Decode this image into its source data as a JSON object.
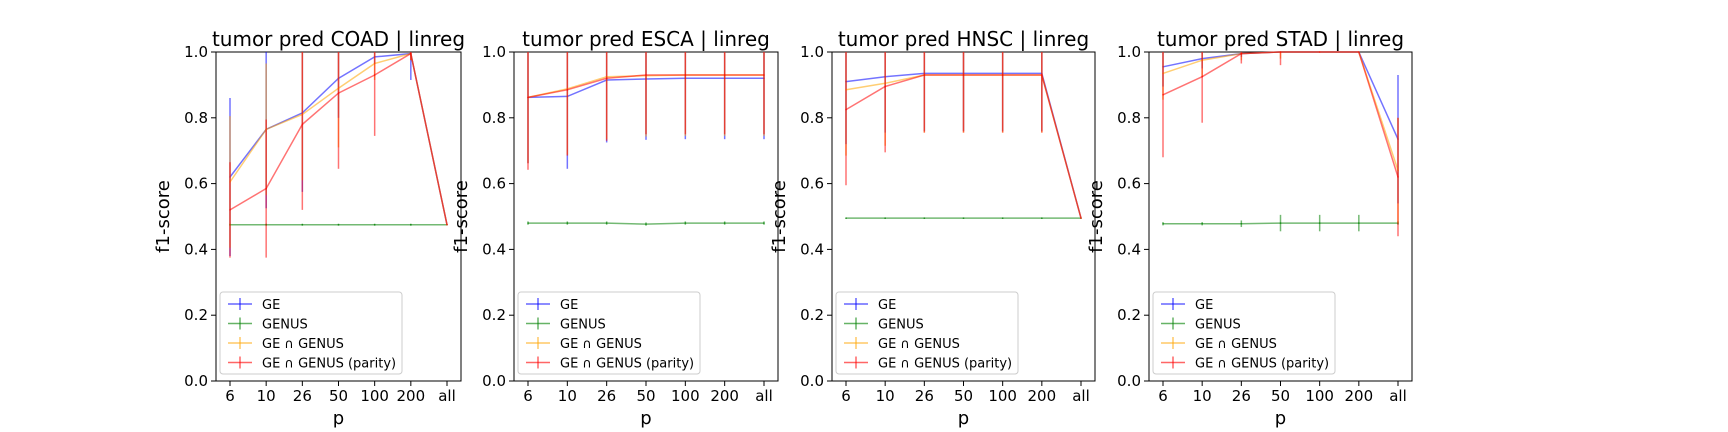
{
  "figure": {
    "colors": {
      "GE": "#0000ff",
      "GENUS": "#008000",
      "GE ∩ GENUS": "#ffa500",
      "GE ∩ GENUS (parity)": "#ff0000"
    },
    "legend": [
      "GE",
      "GENUS",
      "GE ∩ GENUS",
      "GE ∩ GENUS (parity)"
    ]
  },
  "chart_data": [
    {
      "type": "line",
      "title": "tumor pred COAD | linreg",
      "xlabel": "p",
      "ylabel": "f1-score",
      "categories": [
        "6",
        "10",
        "26",
        "50",
        "100",
        "200",
        "all"
      ],
      "ylim": [
        0.0,
        1.0
      ],
      "yticks": [
        "0.0",
        "0.2",
        "0.4",
        "0.6",
        "0.8",
        "1.0"
      ],
      "legend_position": "lower-left",
      "series": [
        {
          "name": "GE",
          "values": [
            0.62,
            0.765,
            0.815,
            0.92,
            0.985,
            0.995,
            0.475
          ],
          "err": [
            0.24,
            0.24,
            0.24,
            0.12,
            0.02,
            0.08,
            0
          ]
        },
        {
          "name": "GENUS",
          "values": [
            0.475,
            0.475,
            0.475,
            0.475,
            0.475,
            0.475,
            0.475
          ],
          "err": [
            0.003,
            0.003,
            0.003,
            0.003,
            0.003,
            0.003,
            0
          ]
        },
        {
          "name": "GE ∩ GENUS",
          "values": [
            0.605,
            0.765,
            0.81,
            0.89,
            0.965,
            0.995,
            0.475
          ],
          "err": [
            0.2,
            0.2,
            0.2,
            0.18,
            0.05,
            0.02,
            0
          ]
        },
        {
          "name": "GE ∩ GENUS (parity)",
          "values": [
            0.52,
            0.585,
            0.78,
            0.875,
            0.93,
            0.995,
            0.475
          ],
          "err": [
            0.145,
            0.21,
            0.26,
            0.23,
            0.185,
            0.02,
            0
          ]
        }
      ]
    },
    {
      "type": "line",
      "title": "tumor pred ESCA | linreg",
      "xlabel": "p",
      "ylabel": "f1-score",
      "categories": [
        "6",
        "10",
        "26",
        "50",
        "100",
        "200",
        "all"
      ],
      "ylim": [
        0.0,
        1.0
      ],
      "yticks": [
        "0.0",
        "0.2",
        "0.4",
        "0.6",
        "0.8",
        "1.0"
      ],
      "legend_position": "lower-left",
      "series": [
        {
          "name": "GE",
          "values": [
            0.862,
            0.865,
            0.915,
            0.918,
            0.92,
            0.92,
            0.92
          ],
          "err": [
            0.2,
            0.22,
            0.19,
            0.185,
            0.185,
            0.185,
            0.185
          ]
        },
        {
          "name": "GENUS",
          "values": [
            0.48,
            0.48,
            0.48,
            0.477,
            0.48,
            0.48,
            0.48
          ],
          "err": [
            0.005,
            0.005,
            0.005,
            0.005,
            0.005,
            0.005,
            0.005
          ]
        },
        {
          "name": "GE ∩ GENUS",
          "values": [
            0.862,
            0.888,
            0.925,
            0.928,
            0.93,
            0.93,
            0.93
          ],
          "err": [
            0.2,
            0.2,
            0.19,
            0.185,
            0.185,
            0.185,
            0.185
          ]
        },
        {
          "name": "GE ∩ GENUS (parity)",
          "values": [
            0.862,
            0.885,
            0.92,
            0.93,
            0.93,
            0.93,
            0.93
          ],
          "err": [
            0.22,
            0.2,
            0.19,
            0.18,
            0.18,
            0.18,
            0.18
          ]
        }
      ]
    },
    {
      "type": "line",
      "title": "tumor pred HNSC | linreg",
      "xlabel": "p",
      "ylabel": "f1-score",
      "categories": [
        "6",
        "10",
        "26",
        "50",
        "100",
        "200",
        "all"
      ],
      "ylim": [
        0.0,
        1.0
      ],
      "yticks": [
        "0.0",
        "0.2",
        "0.4",
        "0.6",
        "0.8",
        "1.0"
      ],
      "legend_position": "lower-left",
      "series": [
        {
          "name": "GE",
          "values": [
            0.91,
            0.925,
            0.935,
            0.935,
            0.935,
            0.935,
            0.495
          ],
          "err": [
            0.19,
            0.17,
            0.175,
            0.175,
            0.175,
            0.175,
            0
          ]
        },
        {
          "name": "GENUS",
          "values": [
            0.495,
            0.495,
            0.495,
            0.495,
            0.495,
            0.495,
            0.495
          ],
          "err": [
            0.002,
            0.002,
            0.002,
            0.002,
            0.002,
            0.002,
            0
          ]
        },
        {
          "name": "GE ∩ GENUS",
          "values": [
            0.885,
            0.905,
            0.93,
            0.93,
            0.93,
            0.93,
            0.495
          ],
          "err": [
            0.2,
            0.19,
            0.175,
            0.175,
            0.175,
            0.175,
            0
          ]
        },
        {
          "name": "GE ∩ GENUS (parity)",
          "values": [
            0.825,
            0.895,
            0.93,
            0.93,
            0.93,
            0.93,
            0.495
          ],
          "err": [
            0.23,
            0.2,
            0.175,
            0.175,
            0.175,
            0.175,
            0
          ]
        }
      ]
    },
    {
      "type": "line",
      "title": "tumor pred STAD | linreg",
      "xlabel": "p",
      "ylabel": "f1-score",
      "categories": [
        "6",
        "10",
        "26",
        "50",
        "100",
        "200",
        "all"
      ],
      "ylim": [
        0.0,
        1.0
      ],
      "yticks": [
        "0.0",
        "0.2",
        "0.4",
        "0.6",
        "0.8",
        "1.0"
      ],
      "legend_position": "lower-left",
      "series": [
        {
          "name": "GE",
          "values": [
            0.955,
            0.98,
            0.995,
            1.0,
            1.0,
            1.0,
            0.735
          ],
          "err": [
            0.06,
            0.03,
            0.01,
            0.0,
            0.0,
            0.0,
            0.195
          ]
        },
        {
          "name": "GENUS",
          "values": [
            0.478,
            0.478,
            0.478,
            0.48,
            0.48,
            0.48,
            0.48
          ],
          "err": [
            0.005,
            0.005,
            0.01,
            0.025,
            0.025,
            0.025,
            0.005
          ]
        },
        {
          "name": "GE ∩ GENUS",
          "values": [
            0.935,
            0.975,
            0.995,
            1.0,
            1.0,
            1.0,
            0.64
          ],
          "err": [
            0.08,
            0.05,
            0.02,
            0.02,
            0.0,
            0.0,
            0.16
          ]
        },
        {
          "name": "GE ∩ GENUS (parity)",
          "values": [
            0.87,
            0.925,
            0.995,
            1.0,
            1.0,
            1.0,
            0.62
          ],
          "err": [
            0.19,
            0.14,
            0.03,
            0.04,
            0.0,
            0.0,
            0.18
          ]
        }
      ]
    }
  ]
}
